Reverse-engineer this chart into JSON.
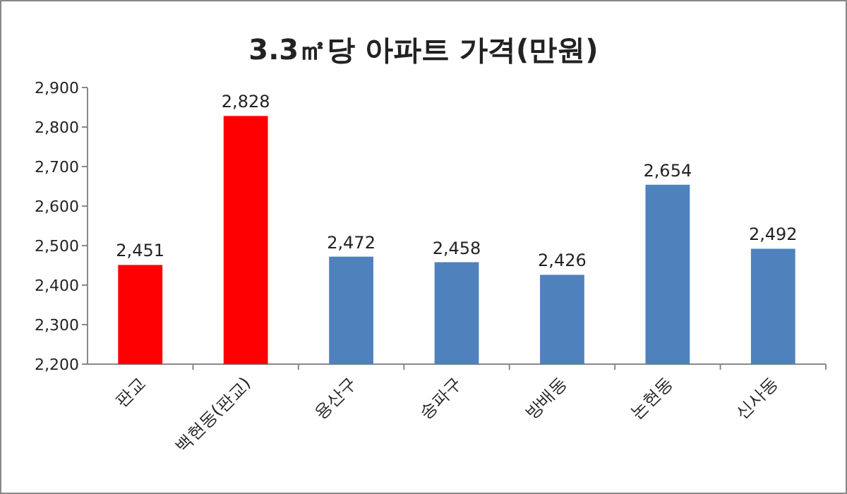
{
  "chart_data": {
    "type": "bar",
    "title": "3.3㎡당 아파트 가격(만원)",
    "categories": [
      "판교",
      "백현동(판교)",
      "용산구",
      "송파구",
      "방배동",
      "논현동",
      "신사동"
    ],
    "values": [
      2451,
      2828,
      2472,
      2458,
      2426,
      2654,
      2492
    ],
    "colors": [
      "#ff0000",
      "#ff0000",
      "#4f81bd",
      "#4f81bd",
      "#4f81bd",
      "#4f81bd",
      "#4f81bd"
    ],
    "value_labels": [
      "2,451",
      "2,828",
      "2,472",
      "2,458",
      "2,426",
      "2,654",
      "2,492"
    ],
    "ylim": [
      2200,
      2900
    ],
    "yticks": [
      {
        "value": 2200,
        "label": "2,200"
      },
      {
        "value": 2300,
        "label": "2,300"
      },
      {
        "value": 2400,
        "label": "2,400"
      },
      {
        "value": 2500,
        "label": "2,500"
      },
      {
        "value": 2600,
        "label": "2,600"
      },
      {
        "value": 2700,
        "label": "2,700"
      },
      {
        "value": 2800,
        "label": "2,800"
      },
      {
        "value": 2900,
        "label": "2,900"
      }
    ],
    "grid": false
  }
}
